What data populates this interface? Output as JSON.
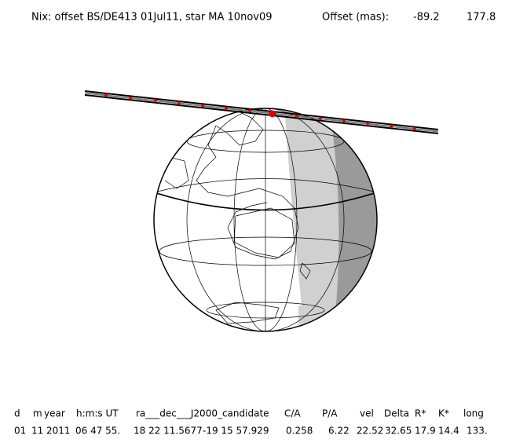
{
  "header": {
    "title": "Nix: offset BS/DE413 01Jul11, star MA 10nov09",
    "offset_label": "Offset (mas):",
    "offset_values": [
      "-89.2",
      "177.8"
    ]
  },
  "table": {
    "columns": [
      "d",
      "m",
      "year",
      "h:m:s UT",
      "ra___dec___J2000_candidate",
      "C/A",
      "P/A",
      "vel",
      "Delta",
      "R*",
      "K*",
      "long"
    ],
    "row": [
      "01",
      "11",
      "2011",
      "06 47 55.",
      "18 22 11.5677",
      "-19 15 57.929",
      "0.258",
      "6.22",
      "22.52",
      "32.65",
      "17.9",
      "14.4",
      "133."
    ]
  }
}
